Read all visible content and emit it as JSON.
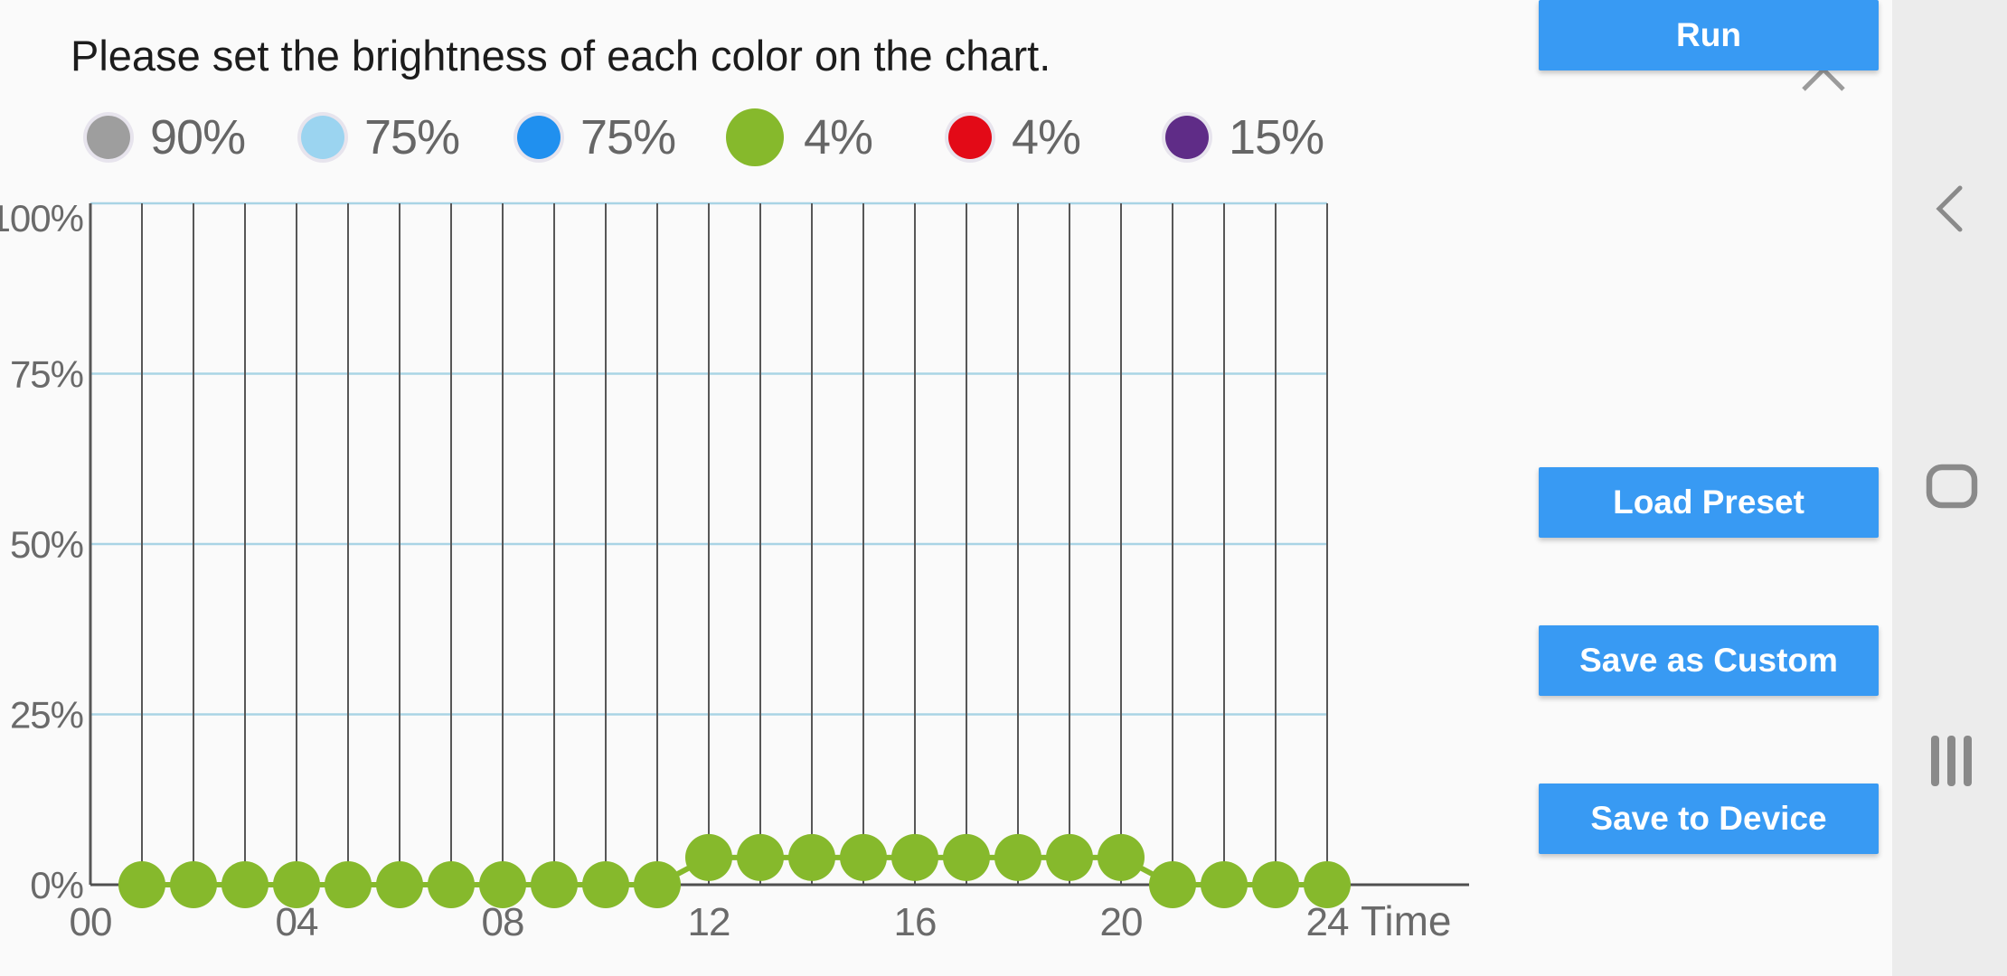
{
  "title": "Please set the brightness of each color on the chart.",
  "close": {
    "icon": "close-x"
  },
  "legend": {
    "items": [
      {
        "color_name": "gray",
        "color": "#9e9e9e",
        "value": "90%",
        "selected": false
      },
      {
        "color_name": "light-blue",
        "color": "#9bd4f0",
        "value": "75%",
        "selected": false
      },
      {
        "color_name": "blue",
        "color": "#2090ef",
        "value": "75%",
        "selected": false
      },
      {
        "color_name": "green",
        "color": "#86b92c",
        "value": "4%",
        "selected": true
      },
      {
        "color_name": "red",
        "color": "#e30a17",
        "value": "4%",
        "selected": false
      },
      {
        "color_name": "purple",
        "color": "#5f2c87",
        "value": "15%",
        "selected": false
      }
    ]
  },
  "action_buttons": [
    {
      "label": "Load Preset"
    },
    {
      "label": "Save as Custom"
    },
    {
      "label": "Save to Device"
    },
    {
      "label": "Run"
    }
  ],
  "navbar": {
    "back_icon": "back-chevron",
    "home_icon": "home-outline",
    "recents_icon": "recent-apps"
  },
  "chart_data": {
    "type": "line",
    "title": "",
    "xlabel": "Time",
    "ylabel": "",
    "xlim": [
      0,
      24
    ],
    "ylim": [
      0,
      100
    ],
    "grid": true,
    "x_ticks": [
      "00",
      "04",
      "08",
      "12",
      "16",
      "20",
      "24"
    ],
    "x_tick_hours": [
      0,
      4,
      8,
      12,
      16,
      20,
      24
    ],
    "y_ticks": [
      "100%",
      "75%",
      "50%",
      "25%",
      "0%"
    ],
    "y_tick_values": [
      100,
      75,
      50,
      25,
      0
    ],
    "series": [
      {
        "name": "green-channel-brightness",
        "color": "#86b92c",
        "x": [
          1,
          2,
          3,
          4,
          5,
          6,
          7,
          8,
          9,
          10,
          11,
          12,
          13,
          14,
          15,
          16,
          17,
          18,
          19,
          20,
          21,
          22,
          23,
          24
        ],
        "values": [
          0,
          0,
          0,
          0,
          0,
          0,
          0,
          0,
          0,
          0,
          0,
          4,
          4,
          4,
          4,
          4,
          4,
          4,
          4,
          4,
          0,
          0,
          0,
          0
        ]
      }
    ]
  }
}
